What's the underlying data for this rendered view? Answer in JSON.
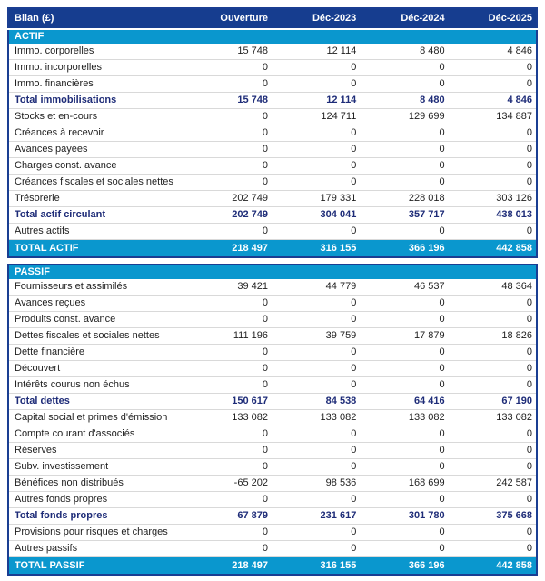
{
  "colors": {
    "header_navy": "#163D8F",
    "banner_cyan": "#0A97CE",
    "total_text_navy": "#1E2C78",
    "row_separator": "#D9D9D9",
    "outer_border_navy": "#1A3E92",
    "body_text": "#1F1F1F"
  },
  "chart_data": {
    "type": "table",
    "title": "Bilan (£)",
    "columns": [
      "Ouverture",
      "Déc-2023",
      "Déc-2024",
      "Déc-2025"
    ],
    "sections": [
      {
        "banner": "ACTIF",
        "rows": [
          {
            "label": "Immo. corporelles",
            "values": [
              15748,
              12114,
              8480,
              4846
            ],
            "style": "normal"
          },
          {
            "label": "Immo. incorporelles",
            "values": [
              0,
              0,
              0,
              0
            ],
            "style": "normal"
          },
          {
            "label": "Immo. financières",
            "values": [
              0,
              0,
              0,
              0
            ],
            "style": "normal"
          },
          {
            "label": "Total immobilisations",
            "values": [
              15748,
              12114,
              8480,
              4846
            ],
            "style": "total"
          },
          {
            "label": "Stocks et en-cours",
            "values": [
              0,
              124711,
              129699,
              134887
            ],
            "style": "normal"
          },
          {
            "label": "Créances à recevoir",
            "values": [
              0,
              0,
              0,
              0
            ],
            "style": "normal"
          },
          {
            "label": "Avances payées",
            "values": [
              0,
              0,
              0,
              0
            ],
            "style": "normal"
          },
          {
            "label": "Charges const. avance",
            "values": [
              0,
              0,
              0,
              0
            ],
            "style": "normal"
          },
          {
            "label": "Créances fiscales et sociales nettes",
            "values": [
              0,
              0,
              0,
              0
            ],
            "style": "normal"
          },
          {
            "label": "Trésorerie",
            "values": [
              202749,
              179331,
              228018,
              303126
            ],
            "style": "normal"
          },
          {
            "label": "Total actif circulant",
            "values": [
              202749,
              304041,
              357717,
              438013
            ],
            "style": "total"
          },
          {
            "label": "Autres actifs",
            "values": [
              0,
              0,
              0,
              0
            ],
            "style": "normal"
          }
        ],
        "grand_total": {
          "label": "TOTAL ACTIF",
          "values": [
            218497,
            316155,
            366196,
            442858
          ]
        }
      },
      {
        "banner": "PASSIF",
        "rows": [
          {
            "label": "Fournisseurs et assimilés",
            "values": [
              39421,
              44779,
              46537,
              48364
            ],
            "style": "normal"
          },
          {
            "label": "Avances reçues",
            "values": [
              0,
              0,
              0,
              0
            ],
            "style": "normal"
          },
          {
            "label": "Produits const. avance",
            "values": [
              0,
              0,
              0,
              0
            ],
            "style": "normal"
          },
          {
            "label": "Dettes fiscales et sociales nettes",
            "values": [
              111196,
              39759,
              17879,
              18826
            ],
            "style": "normal"
          },
          {
            "label": "Dette financière",
            "values": [
              0,
              0,
              0,
              0
            ],
            "style": "normal"
          },
          {
            "label": "Découvert",
            "values": [
              0,
              0,
              0,
              0
            ],
            "style": "normal"
          },
          {
            "label": "Intérêts courus non échus",
            "values": [
              0,
              0,
              0,
              0
            ],
            "style": "normal"
          },
          {
            "label": "Total dettes",
            "values": [
              150617,
              84538,
              64416,
              67190
            ],
            "style": "total"
          },
          {
            "label": "Capital social et primes d'émission",
            "values": [
              133082,
              133082,
              133082,
              133082
            ],
            "style": "normal"
          },
          {
            "label": "Compte courant d'associés",
            "values": [
              0,
              0,
              0,
              0
            ],
            "style": "normal"
          },
          {
            "label": "Réserves",
            "values": [
              0,
              0,
              0,
              0
            ],
            "style": "normal"
          },
          {
            "label": "Subv. investissement",
            "values": [
              0,
              0,
              0,
              0
            ],
            "style": "normal"
          },
          {
            "label": "Bénéfices non distribués",
            "values": [
              -65202,
              98536,
              168699,
              242587
            ],
            "style": "normal"
          },
          {
            "label": "Autres fonds propres",
            "values": [
              0,
              0,
              0,
              0
            ],
            "style": "normal"
          },
          {
            "label": "Total fonds propres",
            "values": [
              67879,
              231617,
              301780,
              375668
            ],
            "style": "total"
          },
          {
            "label": "Provisions pour risques et charges",
            "values": [
              0,
              0,
              0,
              0
            ],
            "style": "normal"
          },
          {
            "label": "Autres passifs",
            "values": [
              0,
              0,
              0,
              0
            ],
            "style": "normal"
          }
        ],
        "grand_total": {
          "label": "TOTAL PASSIF",
          "values": [
            218497,
            316155,
            366196,
            442858
          ]
        }
      }
    ]
  }
}
